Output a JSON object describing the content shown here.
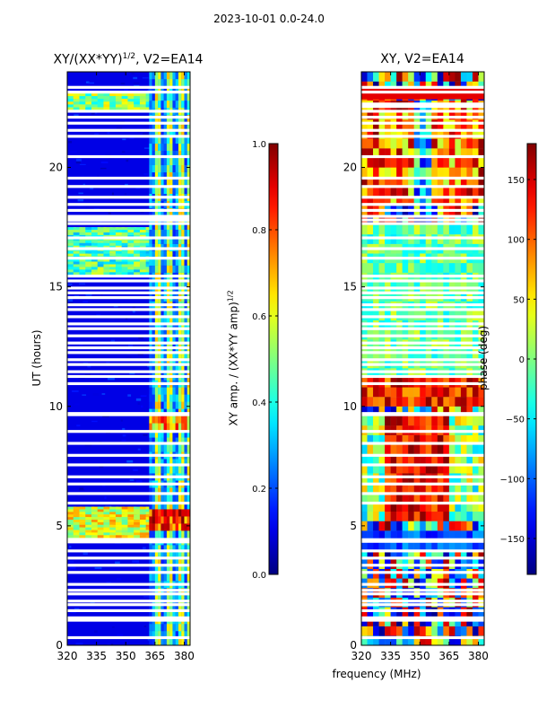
{
  "suptitle": "2023-10-01 0.0-24.0",
  "chart_data": [
    {
      "type": "heatmap",
      "title_text": "XY/(XX*YY)",
      "title_exponent": "1/2",
      "title_suffix": ", V2=EA14",
      "xlabel": "",
      "ylabel": "UT (hours)",
      "xlim": [
        320,
        383
      ],
      "ylim": [
        0,
        24
      ],
      "x_ticks": [
        320,
        335,
        350,
        365,
        380
      ],
      "y_ticks": [
        0,
        5,
        10,
        15,
        20
      ],
      "colorbar": {
        "label_text": "XY amp. / (XX*YY amp)",
        "label_exponent": "1/2",
        "range": [
          0.0,
          1.0
        ],
        "ticks": [
          "0.0",
          "0.2",
          "0.4",
          "0.6",
          "0.8",
          "1.0"
        ],
        "colormap": "jet"
      },
      "bands": [
        {
          "from": 22.4,
          "to": 23.1,
          "level": 0.5
        },
        {
          "from": 15.5,
          "to": 17.5,
          "level": 0.45
        },
        {
          "from": 4.5,
          "to": 5.8,
          "level": 0.6
        }
      ],
      "bright_channels_mhz": [
        363,
        369,
        375,
        380
      ]
    },
    {
      "type": "heatmap",
      "title_text": "XY, V2=EA14",
      "xlabel": "frequency (MHz)",
      "ylabel": "",
      "xlim": [
        320,
        383
      ],
      "ylim": [
        0,
        24
      ],
      "x_ticks": [
        320,
        335,
        350,
        365,
        380
      ],
      "y_ticks": [
        0,
        5,
        10,
        15,
        20
      ],
      "colorbar": {
        "label": "phase (deg)",
        "range": [
          -180,
          180
        ],
        "ticks": [
          -150,
          -100,
          -50,
          0,
          50,
          100,
          150
        ],
        "colormap": "jet"
      }
    }
  ],
  "masked_rows_hours": [
    0.32,
    1.05,
    1.15,
    1.45,
    1.7,
    1.85,
    2.15,
    2.3,
    2.55,
    3.05,
    3.35,
    3.65,
    3.95,
    4.35,
    4.42,
    5.95,
    6.35,
    6.75,
    7.05,
    7.55,
    7.95,
    8.45,
    8.95,
    9.65,
    9.7,
    10.95,
    11.25,
    11.45,
    11.75,
    11.95,
    12.25,
    12.45,
    12.65,
    12.95,
    13.25,
    13.45,
    13.75,
    14.05,
    14.25,
    14.55,
    14.75,
    14.95,
    15.25,
    15.45,
    16.2,
    16.6,
    17.05,
    17.65,
    17.8,
    17.95,
    18.2,
    18.45,
    18.75,
    19.2,
    19.55,
    20.45,
    21.3,
    21.55,
    21.85,
    22.1,
    22.35,
    23.15,
    23.35
  ]
}
